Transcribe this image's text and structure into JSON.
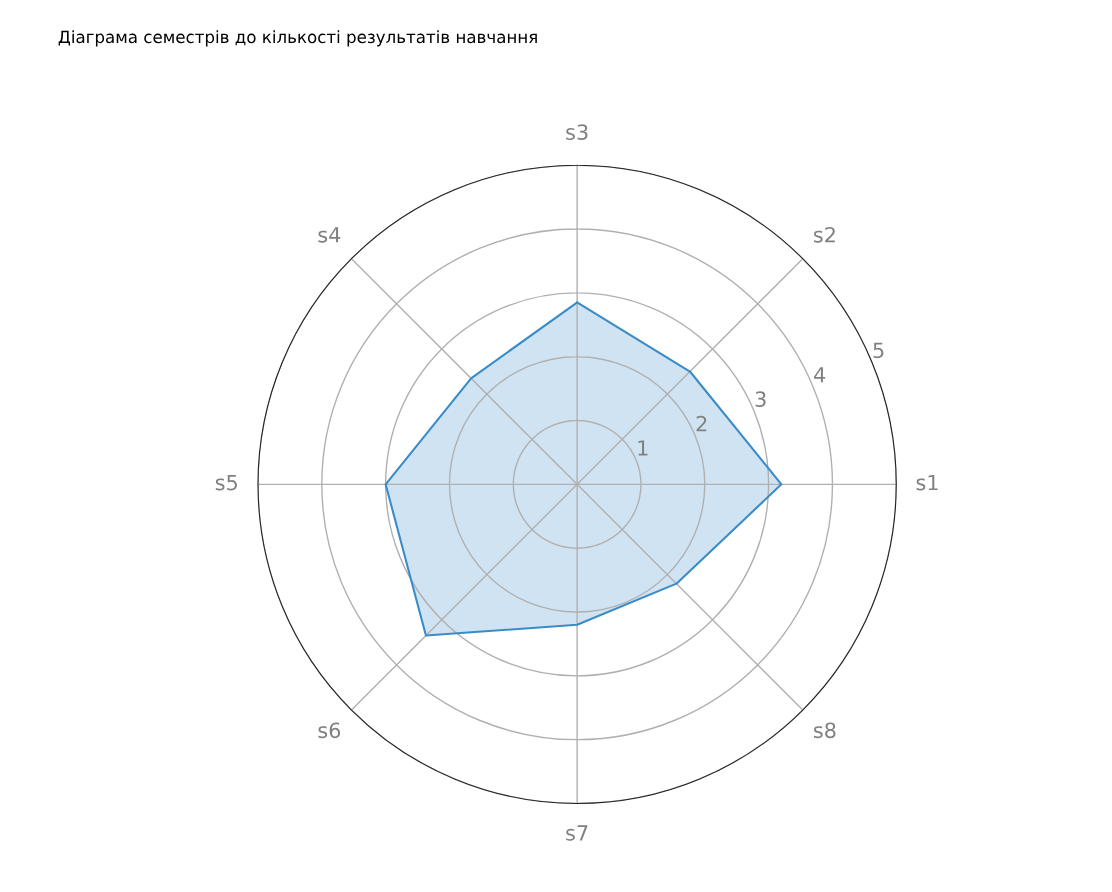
{
  "chart_data": {
    "type": "radar",
    "title": "Діаграма семестрів до кількості результатів навчання",
    "categories": [
      "s3",
      "s2",
      "s1",
      "s8",
      "s7",
      "s6",
      "s5",
      "s4"
    ],
    "series": [
      {
        "color": "#3a8cc8",
        "values": [
          2.85,
          2.5,
          3.2,
          2.2,
          2.2,
          3.35,
          3.0,
          2.35
        ]
      }
    ],
    "ylim": [
      0,
      5
    ],
    "yticks": [
      1,
      2,
      3,
      4,
      5
    ],
    "grid": true
  }
}
